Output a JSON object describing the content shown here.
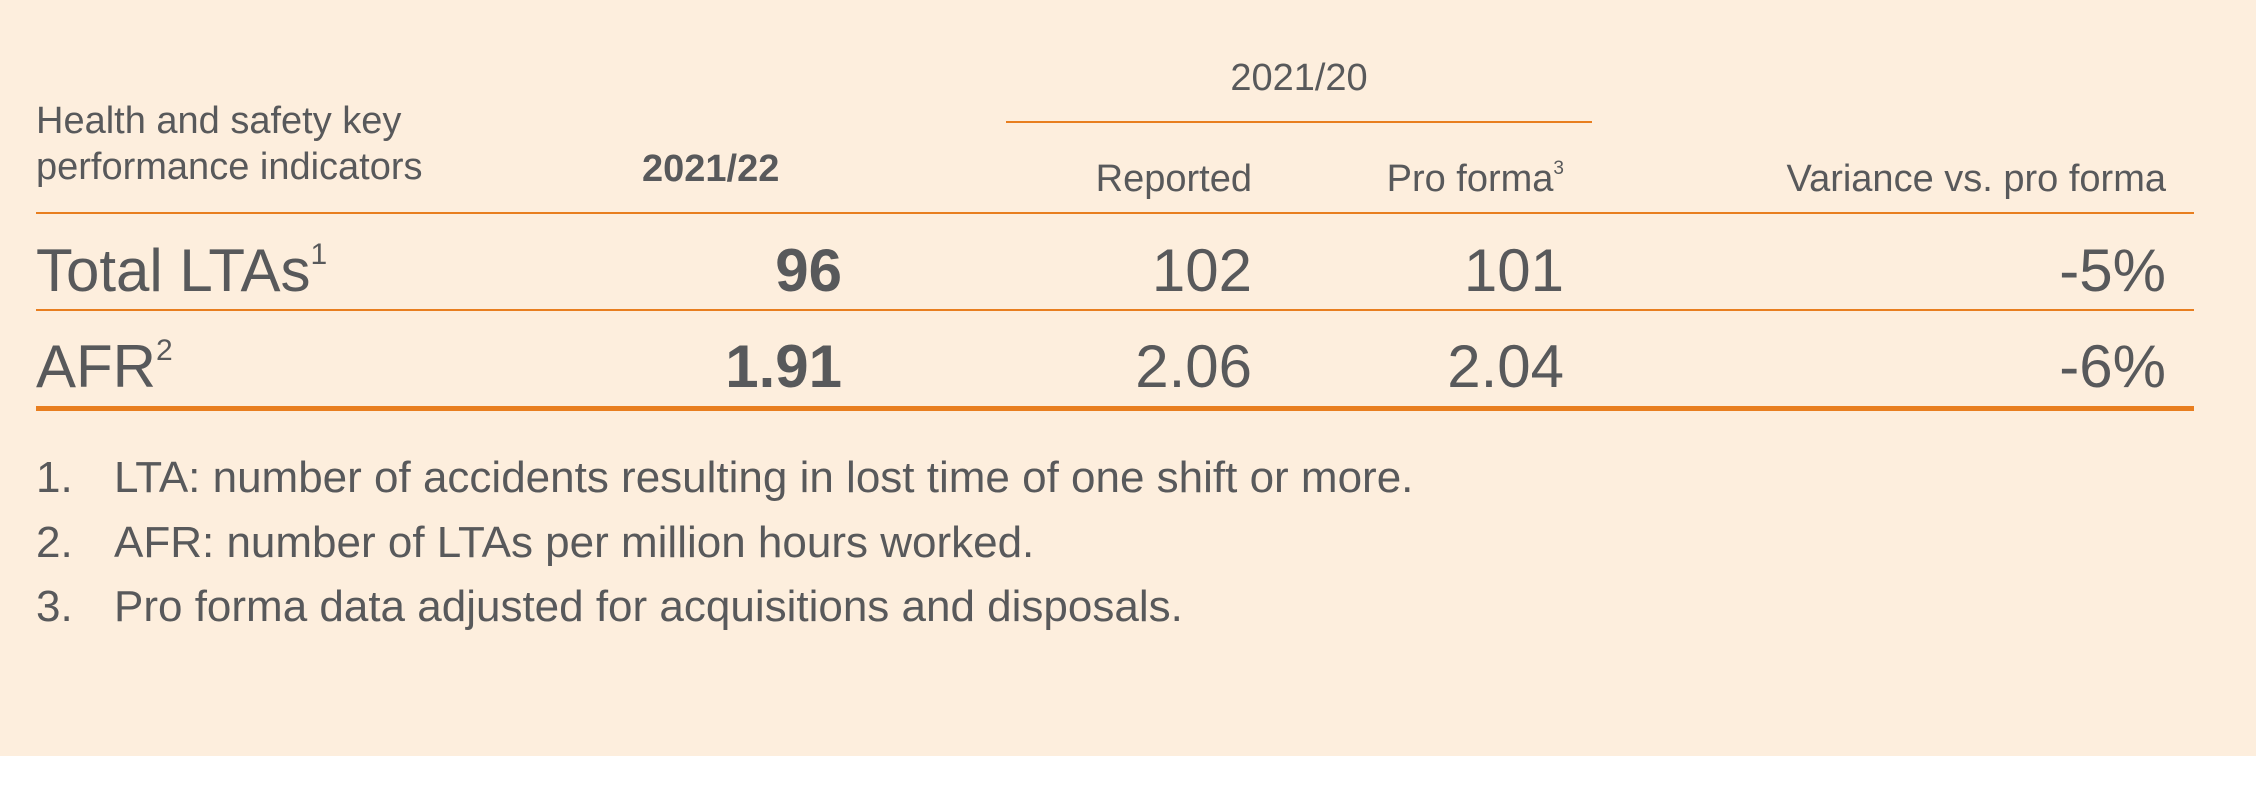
{
  "table": {
    "indicator_header_line1": "Health and safety key",
    "indicator_header_line2": "performance indicators",
    "current_year": "2021/22",
    "prior_year_group": "2021/20",
    "col_reported": "Reported",
    "col_pro_forma": "Pro forma",
    "col_pro_forma_note": "3",
    "col_variance": "Variance vs. pro forma",
    "rows": [
      {
        "label": "Total LTAs",
        "note": "1",
        "current": "96",
        "reported": "102",
        "pro_forma": "101",
        "variance": "-5%"
      },
      {
        "label": "AFR",
        "note": "2",
        "current": "1.91",
        "reported": "2.06",
        "pro_forma": "2.04",
        "variance": "-6%"
      }
    ]
  },
  "footnotes": [
    {
      "num": "1.",
      "text": "LTA: number of accidents resulting in lost time of one shift or more."
    },
    {
      "num": "2.",
      "text": "AFR: number of LTAs per million hours worked."
    },
    {
      "num": "3.",
      "text": "Pro forma data adjusted for acquisitions and disposals."
    }
  ],
  "colors": {
    "panel_background": "#fdeedd",
    "accent_rule": "#e87e1f",
    "text": "#58595b"
  }
}
